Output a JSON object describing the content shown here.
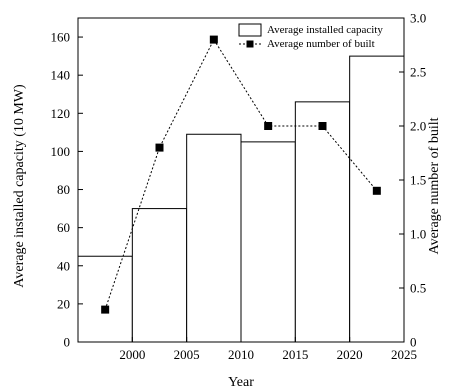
{
  "chart_data": {
    "type": "bar+line",
    "xlabel": "Year",
    "ylabel_left": "Average installed capacity (10 MW)",
    "ylabel_right": "Average number of  built",
    "xlim": [
      1995,
      2025
    ],
    "ylim_left": [
      0,
      170
    ],
    "ylim_right": [
      0,
      3.0
    ],
    "x_ticks": [
      2000,
      2005,
      2010,
      2015,
      2020,
      2025
    ],
    "y_ticks_left": [
      0,
      20,
      40,
      60,
      80,
      100,
      120,
      140,
      160
    ],
    "y_ticks_right": [
      "0",
      "0.5",
      "1.0",
      "1.5",
      "2.0",
      "2.5",
      "3.0"
    ],
    "legend_position": "top-right",
    "grid": false,
    "bars": {
      "name": "Average installed capacity",
      "axis": "left",
      "intervals": [
        {
          "from": 1995,
          "to": 2000,
          "value": 45
        },
        {
          "from": 2000,
          "to": 2005,
          "value": 70
        },
        {
          "from": 2005,
          "to": 2010,
          "value": 109
        },
        {
          "from": 2010,
          "to": 2015,
          "value": 105
        },
        {
          "from": 2015,
          "to": 2020,
          "value": 126
        },
        {
          "from": 2020,
          "to": 2025,
          "value": 150
        }
      ]
    },
    "line": {
      "name": "Average number of  built",
      "axis": "right",
      "style": "dotted",
      "marker": "square",
      "x": [
        1997.5,
        2002.5,
        2007.5,
        2012.5,
        2017.5,
        2022.5
      ],
      "y": [
        0.3,
        1.8,
        2.8,
        2.0,
        2.0,
        1.4
      ]
    }
  }
}
